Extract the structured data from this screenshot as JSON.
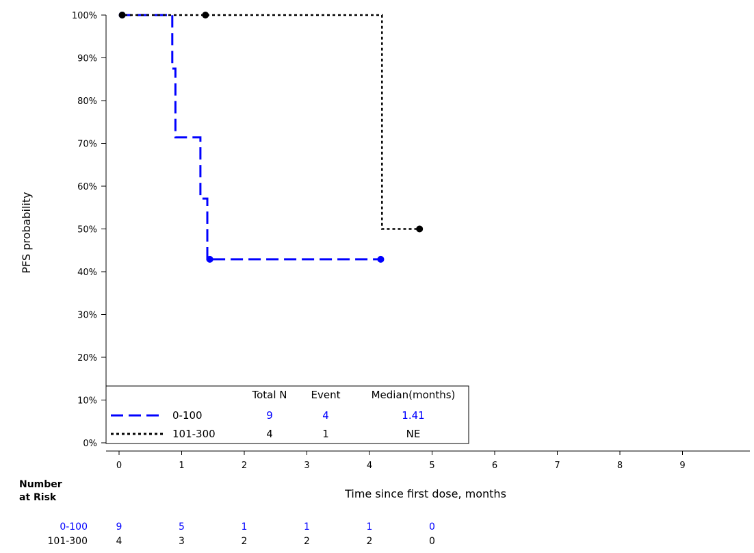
{
  "chart_data": {
    "type": "line",
    "subtype": "kaplan-meier step",
    "title": "",
    "xlabel": "Time since first dose, months",
    "ylabel": "PFS probability",
    "xlim": [
      -0.2,
      10
    ],
    "ylim": [
      0,
      100
    ],
    "x_ticks": [
      0,
      1,
      2,
      3,
      4,
      5,
      6,
      7,
      8,
      9
    ],
    "x_tick_labels": [
      "0",
      "1",
      "2",
      "3",
      "4",
      "5",
      "6",
      "7",
      "8",
      "9"
    ],
    "y_ticks": [
      0,
      10,
      20,
      30,
      40,
      50,
      60,
      70,
      80,
      90,
      100
    ],
    "y_tick_labels": [
      "0%",
      "10%",
      "20%",
      "30%",
      "40%",
      "50%",
      "60%",
      "70%",
      "80%",
      "90%",
      "100%"
    ],
    "grid": false,
    "series": [
      {
        "name": "0-100",
        "color": "#0000ff",
        "line_style": "long-dash",
        "steps": [
          {
            "x": 0,
            "y": 100
          },
          {
            "x": 0.85,
            "y": 100
          },
          {
            "x": 0.85,
            "y": 87.5
          },
          {
            "x": 0.9,
            "y": 87.5
          },
          {
            "x": 0.9,
            "y": 71.4
          },
          {
            "x": 1.3,
            "y": 71.4
          },
          {
            "x": 1.3,
            "y": 57.1
          },
          {
            "x": 1.41,
            "y": 57.1
          },
          {
            "x": 1.41,
            "y": 42.9
          },
          {
            "x": 4.18,
            "y": 42.9
          }
        ],
        "censored": [
          {
            "x": 0.05,
            "y": 100
          },
          {
            "x": 1.45,
            "y": 42.9
          },
          {
            "x": 4.18,
            "y": 42.9
          }
        ]
      },
      {
        "name": "101-300",
        "color": "#000000",
        "line_style": "dotted",
        "steps": [
          {
            "x": 0,
            "y": 100
          },
          {
            "x": 4.2,
            "y": 100
          },
          {
            "x": 4.2,
            "y": 50
          },
          {
            "x": 4.8,
            "y": 50
          }
        ],
        "censored": [
          {
            "x": 0.05,
            "y": 100
          },
          {
            "x": 1.38,
            "y": 100
          },
          {
            "x": 4.8,
            "y": 50
          }
        ]
      }
    ],
    "legend": {
      "placement": "bottom-left",
      "headers": [
        "Total N",
        "Event",
        "Median(months)"
      ],
      "rows": [
        {
          "name": "0-100",
          "total_n": "9",
          "event": "4",
          "median": "1.41",
          "color": "#0000ff",
          "line_style": "long-dash"
        },
        {
          "name": "101-300",
          "total_n": "4",
          "event": "1",
          "median": "NE",
          "color": "#000000",
          "line_style": "dotted"
        }
      ]
    },
    "number_at_risk": {
      "title_line1": "Number",
      "title_line2": "at Risk",
      "x": [
        0,
        1,
        2,
        3,
        4,
        5
      ],
      "rows": [
        {
          "name": "0-100",
          "color": "#0000ff",
          "values": [
            "9",
            "5",
            "1",
            "1",
            "1",
            "0"
          ]
        },
        {
          "name": "101-300",
          "color": "#000000",
          "values": [
            "4",
            "3",
            "2",
            "2",
            "2",
            "0"
          ]
        }
      ]
    }
  }
}
